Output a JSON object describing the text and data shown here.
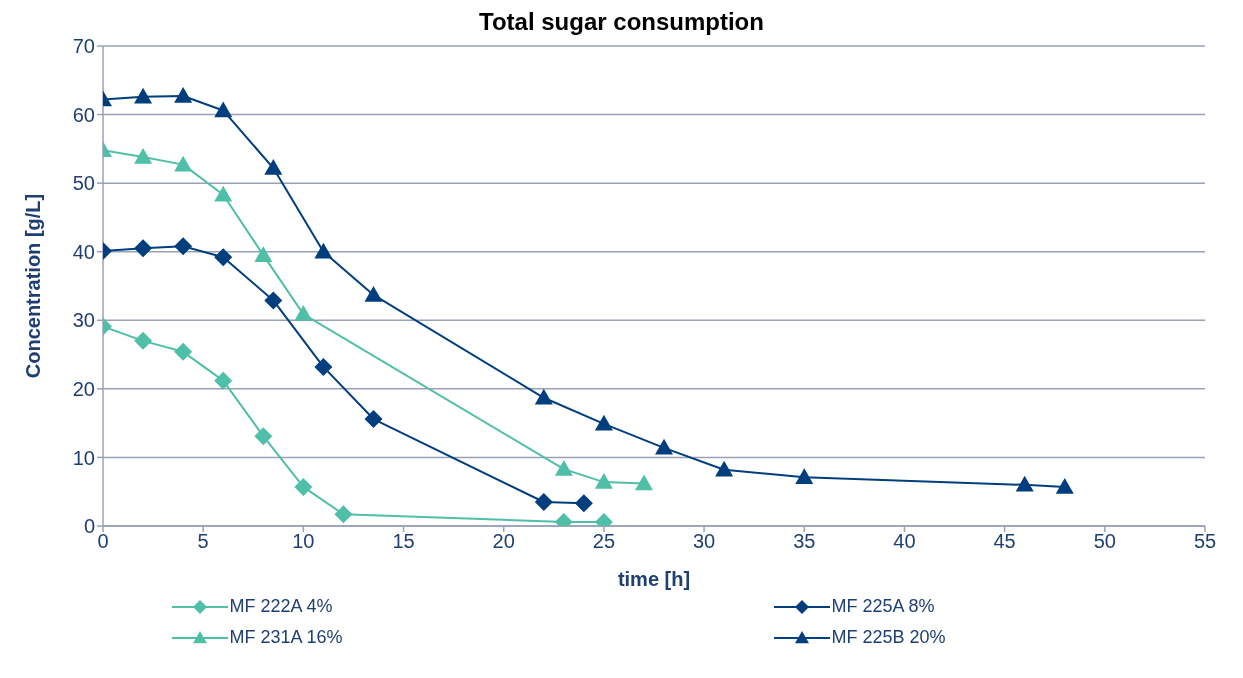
{
  "chart_data": {
    "type": "line",
    "title": "Total sugar consumption",
    "xlabel": "time [h]",
    "ylabel": "Concentration [g/L]",
    "xlim": [
      0,
      55
    ],
    "xticks": [
      0,
      5,
      10,
      15,
      20,
      25,
      30,
      35,
      40,
      45,
      50,
      55
    ],
    "ylim": [
      0,
      70
    ],
    "yticks": [
      0,
      10,
      20,
      30,
      40,
      50,
      60,
      70
    ],
    "grid": "y",
    "legend": "bottom",
    "line_style": "solid",
    "series": [
      {
        "name": "MF 222A 4%",
        "color": "#4fbfa8",
        "marker": "diamond",
        "x": [
          0,
          2,
          4,
          6,
          8,
          10,
          12,
          23,
          25
        ],
        "values": [
          29.1,
          27,
          25.4,
          21.2,
          13.1,
          5.7,
          1.7,
          0.6,
          0.6
        ]
      },
      {
        "name": "MF 225A 8%",
        "color": "#003e7e",
        "marker": "diamond",
        "x": [
          0,
          2,
          4,
          6,
          8.5,
          11,
          13.5,
          22,
          24
        ],
        "values": [
          40.1,
          40.5,
          40.8,
          39.2,
          32.9,
          23.2,
          15.6,
          3.5,
          3.3
        ]
      },
      {
        "name": "MF 231A 16%",
        "color": "#4fbfa8",
        "marker": "triangle",
        "x": [
          0,
          2,
          4,
          6,
          8,
          10,
          23,
          25,
          27
        ],
        "values": [
          54.8,
          53.8,
          52.7,
          48.3,
          39.5,
          30.9,
          8.3,
          6.4,
          6.2
        ]
      },
      {
        "name": "MF 225B 20%",
        "color": "#003e7e",
        "marker": "triangle",
        "x": [
          0,
          2,
          4,
          6,
          8.5,
          11,
          13.5,
          22,
          25,
          28,
          31,
          35,
          46,
          48
        ],
        "values": [
          62.2,
          62.6,
          62.7,
          60.6,
          52.2,
          40,
          33.7,
          18.7,
          14.9,
          11.4,
          8.2,
          7.1,
          6,
          5.7
        ]
      }
    ]
  }
}
